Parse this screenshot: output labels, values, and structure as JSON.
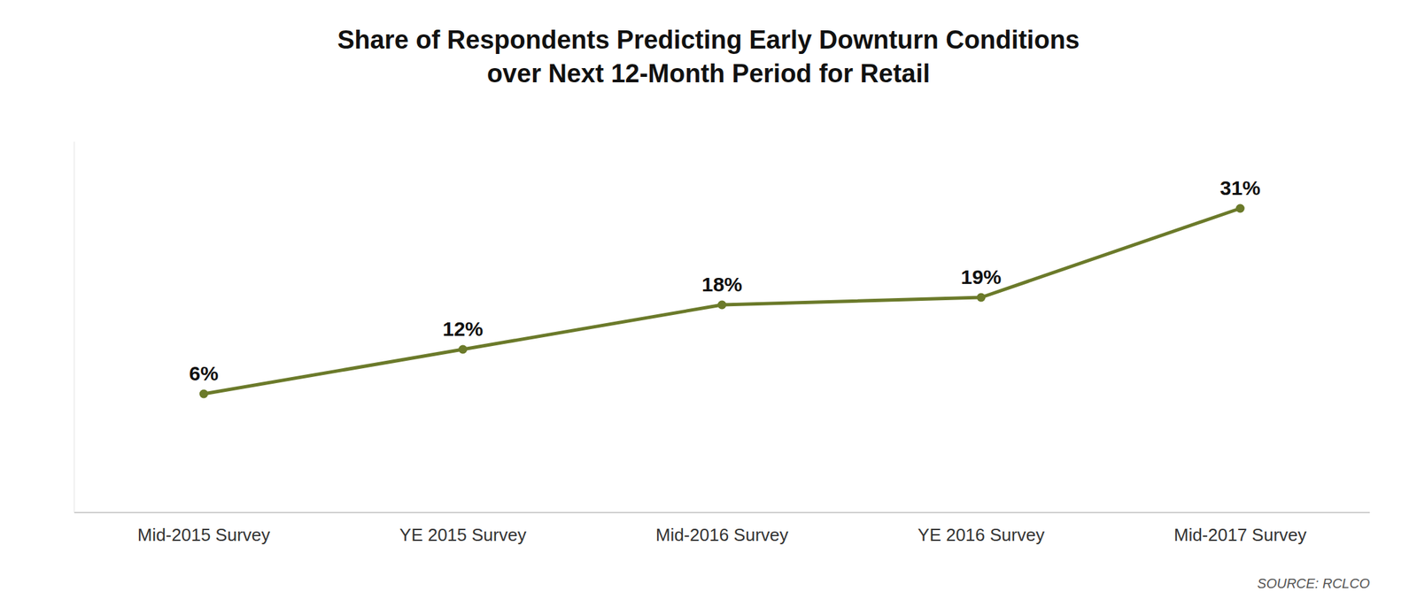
{
  "chart_data": {
    "type": "line",
    "title": "Share of Respondents Predicting Early Downturn Conditions",
    "subtitle": "over Next 12-Month Period for Retail",
    "annotations": [
      "SOURCE: RCLCO"
    ],
    "categories": [
      "Mid-2015 Survey",
      "YE 2015 Survey",
      "Mid-2016 Survey",
      "YE 2016 Survey",
      "Mid-2017 Survey"
    ],
    "values": [
      6,
      12,
      18,
      19,
      31
    ],
    "value_labels": [
      "6%",
      "12%",
      "18%",
      "19%",
      "31%"
    ],
    "data_labels": true,
    "color": "#6b7a2a",
    "marker": "circle",
    "ylim": [
      -10,
      40
    ],
    "grid": false,
    "tick_labels": "x"
  }
}
